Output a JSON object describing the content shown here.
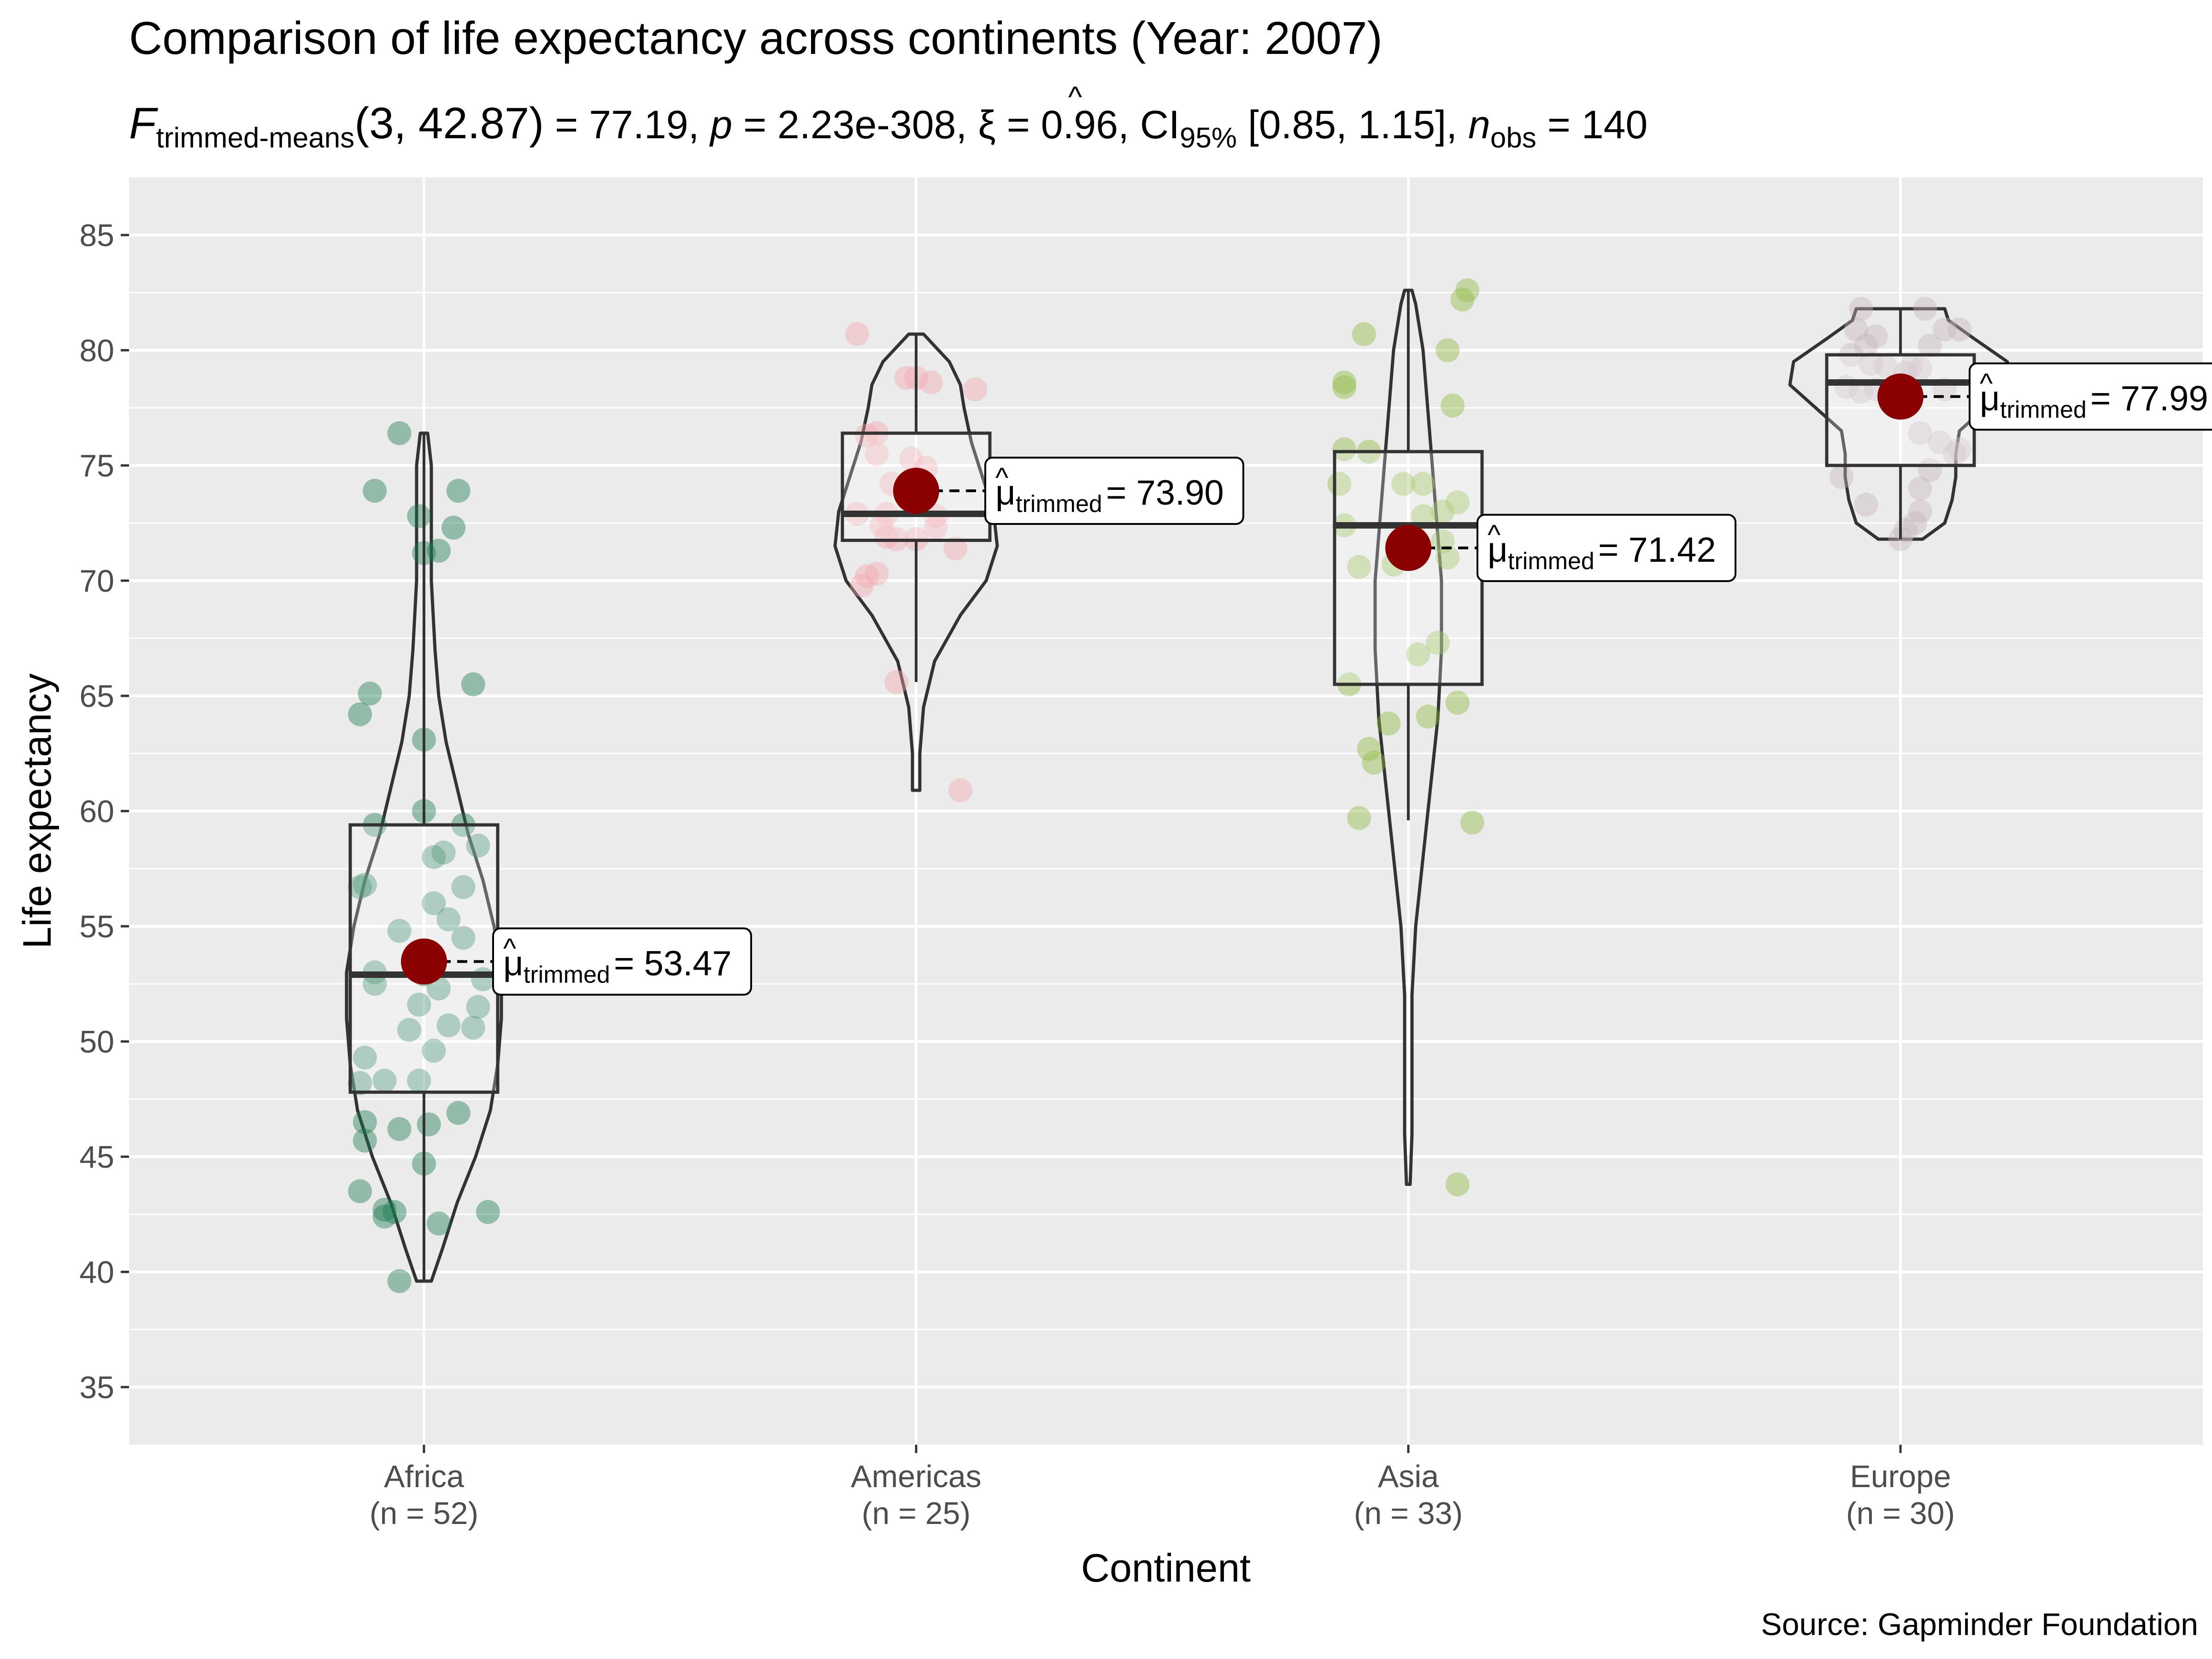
{
  "chart_data": {
    "type": "violin-box",
    "title": "Comparison of life expectancy across continents (Year: 2007)",
    "subtitle": {
      "f_sym": "F",
      "f_sub": "trimmed-means",
      "df": "(3, 42.87)",
      "eq1": " = 77.19, ",
      "p_sym": "p",
      "p_val": " = 2.23e-308, ",
      "xi_sym": "ξ",
      "xi_val": " = 0.96, CI",
      "ci_sub": "95%",
      "ci_val": " [0.85, 1.15], ",
      "n_sym": "n",
      "n_sub": "obs",
      "n_val": " = 140"
    },
    "xlabel": "Continent",
    "ylabel": "Life expectancy",
    "caption": "Source: Gapminder Foundation",
    "ylim": [
      32.5,
      87.5
    ],
    "yticks": [
      35,
      40,
      45,
      50,
      55,
      60,
      65,
      70,
      75,
      80,
      85
    ],
    "ytick_labels": [
      "35",
      "40",
      "45",
      "50",
      "55",
      "60",
      "65",
      "70",
      "75",
      "80",
      "85"
    ],
    "mu_label": "μ",
    "mu_sub": "trimmed",
    "groups": [
      {
        "name": "Africa",
        "n_label": "(n = 52)",
        "color": "#1B7A52",
        "trimmed_mean": 53.47,
        "mean_label": "= 53.47",
        "box": {
          "q1": 47.8,
          "median": 52.9,
          "q3": 59.4,
          "whisker_low": 39.6,
          "whisker_high": 76.4
        },
        "violin": [
          [
            39.6,
            0.02
          ],
          [
            41,
            0.05
          ],
          [
            43,
            0.09
          ],
          [
            45,
            0.14
          ],
          [
            47,
            0.18
          ],
          [
            49,
            0.2
          ],
          [
            51,
            0.21
          ],
          [
            53,
            0.21
          ],
          [
            55,
            0.19
          ],
          [
            57,
            0.16
          ],
          [
            59,
            0.12
          ],
          [
            61,
            0.09
          ],
          [
            63,
            0.06
          ],
          [
            65,
            0.04
          ],
          [
            67,
            0.03
          ],
          [
            70,
            0.02
          ],
          [
            73,
            0.02
          ],
          [
            75,
            0.02
          ],
          [
            76.4,
            0.01
          ]
        ],
        "points": [
          [
            -0.05,
            76.4
          ],
          [
            -0.1,
            73.9
          ],
          [
            0.07,
            73.9
          ],
          [
            -0.01,
            72.8
          ],
          [
            0.06,
            72.3
          ],
          [
            0.03,
            71.3
          ],
          [
            0.0,
            71.2
          ],
          [
            -0.11,
            65.1
          ],
          [
            0.1,
            65.5
          ],
          [
            -0.13,
            64.2
          ],
          [
            0.0,
            63.1
          ],
          [
            -0.1,
            59.4
          ],
          [
            0.0,
            60.0
          ],
          [
            0.08,
            59.4
          ],
          [
            0.11,
            58.5
          ],
          [
            0.04,
            58.2
          ],
          [
            0.02,
            58.0
          ],
          [
            -0.12,
            56.8
          ],
          [
            -0.13,
            56.7
          ],
          [
            0.08,
            56.7
          ],
          [
            0.02,
            56.0
          ],
          [
            0.05,
            55.3
          ],
          [
            0.08,
            54.5
          ],
          [
            -0.05,
            54.8
          ],
          [
            -0.1,
            53.0
          ],
          [
            0.0,
            52.9
          ],
          [
            -0.1,
            52.5
          ],
          [
            0.03,
            52.3
          ],
          [
            0.12,
            52.7
          ],
          [
            -0.01,
            51.6
          ],
          [
            0.11,
            51.5
          ],
          [
            0.05,
            50.7
          ],
          [
            0.1,
            50.6
          ],
          [
            -0.03,
            50.5
          ],
          [
            0.02,
            49.6
          ],
          [
            -0.12,
            49.3
          ],
          [
            -0.13,
            48.2
          ],
          [
            -0.08,
            48.3
          ],
          [
            -0.01,
            48.3
          ],
          [
            0.07,
            46.9
          ],
          [
            -0.12,
            46.5
          ],
          [
            0.01,
            46.4
          ],
          [
            -0.05,
            46.2
          ],
          [
            -0.12,
            45.7
          ],
          [
            0.0,
            44.7
          ],
          [
            -0.13,
            43.5
          ],
          [
            -0.08,
            42.7
          ],
          [
            -0.06,
            42.6
          ],
          [
            -0.08,
            42.4
          ],
          [
            0.03,
            42.1
          ],
          [
            0.13,
            42.6
          ],
          [
            -0.05,
            39.6
          ]
        ]
      },
      {
        "name": "Americas",
        "n_label": "(n = 25)",
        "color": "#F4A6AE",
        "trimmed_mean": 73.9,
        "mean_label": "= 73.90",
        "box": {
          "q1": 71.75,
          "median": 72.9,
          "q3": 76.4,
          "whisker_low": 65.6,
          "whisker_high": 80.7
        },
        "violin": [
          [
            60.9,
            0.01
          ],
          [
            62.5,
            0.01
          ],
          [
            64.5,
            0.02
          ],
          [
            66.5,
            0.05
          ],
          [
            68.5,
            0.12
          ],
          [
            70,
            0.19
          ],
          [
            71.5,
            0.22
          ],
          [
            73,
            0.21
          ],
          [
            74.5,
            0.18
          ],
          [
            76,
            0.15
          ],
          [
            77.5,
            0.13
          ],
          [
            78.5,
            0.12
          ],
          [
            79.5,
            0.09
          ],
          [
            80.7,
            0.02
          ]
        ],
        "points": [
          [
            -0.12,
            80.7
          ],
          [
            -0.02,
            78.8
          ],
          [
            0.0,
            78.8
          ],
          [
            0.03,
            78.6
          ],
          [
            0.12,
            78.3
          ],
          [
            -0.08,
            76.4
          ],
          [
            -0.1,
            76.3
          ],
          [
            -0.08,
            75.5
          ],
          [
            -0.01,
            75.3
          ],
          [
            0.02,
            74.9
          ],
          [
            -0.05,
            74.2
          ],
          [
            -0.12,
            72.9
          ],
          [
            -0.06,
            72.9
          ],
          [
            -0.07,
            72.4
          ],
          [
            0.04,
            72.8
          ],
          [
            0.04,
            72.3
          ],
          [
            -0.06,
            71.9
          ],
          [
            -0.04,
            71.8
          ],
          [
            0.0,
            71.8
          ],
          [
            0.08,
            71.4
          ],
          [
            -0.08,
            70.3
          ],
          [
            -0.1,
            70.2
          ],
          [
            -0.11,
            69.8
          ],
          [
            -0.04,
            65.6
          ],
          [
            0.09,
            60.9
          ]
        ]
      },
      {
        "name": "Asia",
        "n_label": "(n = 33)",
        "color": "#8DBA3E",
        "trimmed_mean": 71.42,
        "mean_label": "= 71.42",
        "box": {
          "q1": 65.5,
          "median": 72.4,
          "q3": 75.6,
          "whisker_low": 59.6,
          "whisker_high": 82.6
        },
        "violin": [
          [
            43.8,
            0.005
          ],
          [
            46,
            0.01
          ],
          [
            49,
            0.01
          ],
          [
            52,
            0.01
          ],
          [
            55,
            0.02
          ],
          [
            58,
            0.04
          ],
          [
            61,
            0.06
          ],
          [
            64,
            0.08
          ],
          [
            67,
            0.09
          ],
          [
            70,
            0.09
          ],
          [
            72,
            0.08
          ],
          [
            74,
            0.07
          ],
          [
            76,
            0.06
          ],
          [
            78,
            0.05
          ],
          [
            80,
            0.04
          ],
          [
            82,
            0.02
          ],
          [
            82.6,
            0.01
          ]
        ],
        "points": [
          [
            0.12,
            82.6
          ],
          [
            0.11,
            82.2
          ],
          [
            -0.09,
            80.7
          ],
          [
            0.08,
            80.0
          ],
          [
            -0.13,
            78.6
          ],
          [
            -0.13,
            78.4
          ],
          [
            0.09,
            77.6
          ],
          [
            -0.13,
            75.7
          ],
          [
            -0.08,
            75.6
          ],
          [
            -0.14,
            74.2
          ],
          [
            -0.01,
            74.2
          ],
          [
            0.03,
            74.2
          ],
          [
            0.1,
            73.4
          ],
          [
            0.07,
            73.0
          ],
          [
            0.03,
            72.8
          ],
          [
            -0.13,
            72.4
          ],
          [
            0.01,
            72.0
          ],
          [
            0.08,
            71.0
          ],
          [
            -0.1,
            70.6
          ],
          [
            -0.03,
            70.7
          ],
          [
            0.02,
            71.2
          ],
          [
            0.07,
            71.7
          ],
          [
            0.06,
            67.3
          ],
          [
            0.02,
            66.8
          ],
          [
            -0.12,
            65.5
          ],
          [
            0.1,
            64.7
          ],
          [
            -0.04,
            63.8
          ],
          [
            -0.08,
            62.7
          ],
          [
            -0.07,
            62.1
          ],
          [
            0.04,
            64.1
          ],
          [
            -0.1,
            59.7
          ],
          [
            0.13,
            59.5
          ],
          [
            0.1,
            43.8
          ]
        ]
      },
      {
        "name": "Europe",
        "n_label": "(n = 30)",
        "color": "#C6B5BF",
        "trimmed_mean": 77.99,
        "mean_label": "= 77.99",
        "box": {
          "q1": 75.0,
          "median": 78.6,
          "q3": 79.8,
          "whisker_low": 71.8,
          "whisker_high": 81.8
        },
        "violin": [
          [
            71.8,
            0.06
          ],
          [
            72.5,
            0.12
          ],
          [
            73.5,
            0.14
          ],
          [
            74.5,
            0.15
          ],
          [
            75.5,
            0.15
          ],
          [
            76.5,
            0.16
          ],
          [
            77.5,
            0.23
          ],
          [
            78.5,
            0.3
          ],
          [
            79.5,
            0.29
          ],
          [
            80.5,
            0.2
          ],
          [
            81.3,
            0.13
          ],
          [
            81.8,
            0.12
          ]
        ],
        "points": [
          [
            -0.08,
            81.8
          ],
          [
            0.05,
            81.8
          ],
          [
            -0.09,
            80.9
          ],
          [
            0.09,
            80.9
          ],
          [
            0.12,
            80.9
          ],
          [
            -0.05,
            80.6
          ],
          [
            -0.07,
            80.2
          ],
          [
            0.06,
            80.2
          ],
          [
            -0.1,
            79.8
          ],
          [
            -0.06,
            79.4
          ],
          [
            -0.03,
            79.3
          ],
          [
            0.02,
            79.3
          ],
          [
            0.04,
            79.2
          ],
          [
            0.01,
            79.0
          ],
          [
            -0.08,
            78.2
          ],
          [
            0.09,
            78.3
          ],
          [
            -0.11,
            78.4
          ],
          [
            -0.05,
            78.3
          ],
          [
            0.04,
            76.4
          ],
          [
            0.08,
            76.0
          ],
          [
            0.12,
            75.7
          ],
          [
            0.11,
            75.5
          ],
          [
            0.06,
            74.8
          ],
          [
            -0.12,
            74.5
          ],
          [
            0.04,
            74.0
          ],
          [
            -0.07,
            73.3
          ],
          [
            0.04,
            73.0
          ],
          [
            0.03,
            72.5
          ],
          [
            0.01,
            72.2
          ],
          [
            0.0,
            71.8
          ]
        ]
      }
    ]
  }
}
